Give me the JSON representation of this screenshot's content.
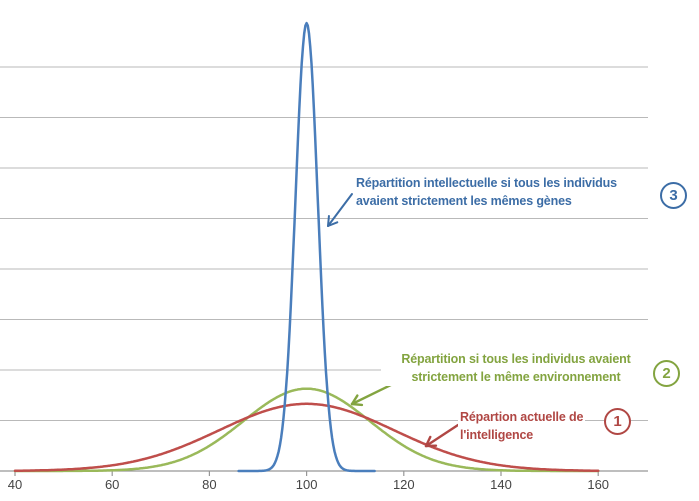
{
  "chart_data": {
    "type": "line",
    "title": "",
    "xlabel": "",
    "ylabel": "",
    "x_ticks": [
      "40",
      "60",
      "80",
      "100",
      "120",
      "140",
      "160"
    ],
    "x_tick_values": [
      40,
      60,
      80,
      100,
      120,
      140,
      160
    ],
    "xlim": [
      37,
      170
    ],
    "ylim": [
      0,
      9.3
    ],
    "gridlines_y": [
      1,
      2,
      3,
      4,
      5,
      6,
      7,
      8
    ],
    "grid_on": true,
    "legend_position": "none (colored callout labels with numbered circles)",
    "colors": {
      "gridline": "#b9b9b9",
      "axis": "#979797",
      "tick_label": "#454545",
      "background": "#ffffff"
    },
    "series": [
      {
        "id": "environment",
        "name": "Répartition si tous les individus avaient strictement le même environnement",
        "color": "#9ab95a",
        "curve": "gaussian",
        "mean": 100,
        "sd": 13,
        "peak": 1.63,
        "x_range": [
          40,
          160
        ],
        "callout_number": "2"
      },
      {
        "id": "actual",
        "name": "Répartion actuelle de l'intelligence",
        "color": "#bf4e4b",
        "curve": "gaussian",
        "mean": 100,
        "sd": 18,
        "peak": 1.33,
        "x_range": [
          40,
          160
        ],
        "callout_number": "1"
      },
      {
        "id": "genes",
        "name": "Répartition intellectuelle si tous les individus avaient strictement les mêmes gènes",
        "color": "#4a7ebc",
        "curve": "gaussian",
        "mean": 100,
        "sd": 2.3,
        "peak": 8.87,
        "x_range": [
          86,
          114
        ],
        "callout_number": "3"
      }
    ]
  },
  "annotations": [
    {
      "id": "genes",
      "lines": [
        "Répartition intellectuelle si tous les individus",
        "avaient strictement les mêmes gènes"
      ],
      "number": "3",
      "color": "#3c6da6"
    },
    {
      "id": "environment",
      "lines": [
        "Répartition si tous les individus avaient",
        "strictement le même environnement"
      ],
      "number": "2",
      "color": "#83a440"
    },
    {
      "id": "actual",
      "lines": [
        "Répartion actuelle de",
        "l'intelligence"
      ],
      "number": "1",
      "color": "#b04744"
    }
  ]
}
